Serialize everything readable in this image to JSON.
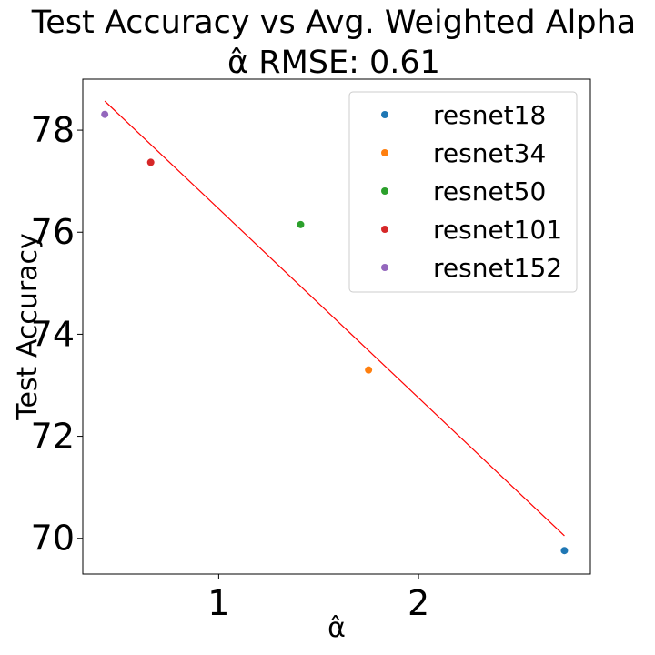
{
  "chart_data": {
    "type": "scatter",
    "title": "Test Accuracy vs Avg. Weighted Alpha",
    "subtitle": "α̂ RMSE: 0.61",
    "xlabel": "α̂",
    "ylabel": "Test Accuracy",
    "xlim": [
      0.32,
      2.86
    ],
    "ylim": [
      69.3,
      79.0
    ],
    "xticks": [
      1,
      2
    ],
    "yticks": [
      70,
      72,
      74,
      76,
      78
    ],
    "grid": false,
    "legend_position": "top-right",
    "series": [
      {
        "name": "resnet18",
        "color": "#1f77b4",
        "points": [
          {
            "x": 2.73,
            "y": 69.76
          }
        ]
      },
      {
        "name": "resnet34",
        "color": "#ff7f0e",
        "points": [
          {
            "x": 1.75,
            "y": 73.3
          }
        ]
      },
      {
        "name": "resnet50",
        "color": "#2ca02c",
        "points": [
          {
            "x": 1.41,
            "y": 76.15
          }
        ]
      },
      {
        "name": "resnet101",
        "color": "#d62728",
        "points": [
          {
            "x": 0.66,
            "y": 77.37
          }
        ]
      },
      {
        "name": "resnet152",
        "color": "#9467bd",
        "points": [
          {
            "x": 0.43,
            "y": 78.31
          }
        ]
      }
    ],
    "fit_line": {
      "color": "#ff0000",
      "points": [
        {
          "x": 0.43,
          "y": 78.57
        },
        {
          "x": 2.73,
          "y": 70.05
        }
      ]
    }
  }
}
